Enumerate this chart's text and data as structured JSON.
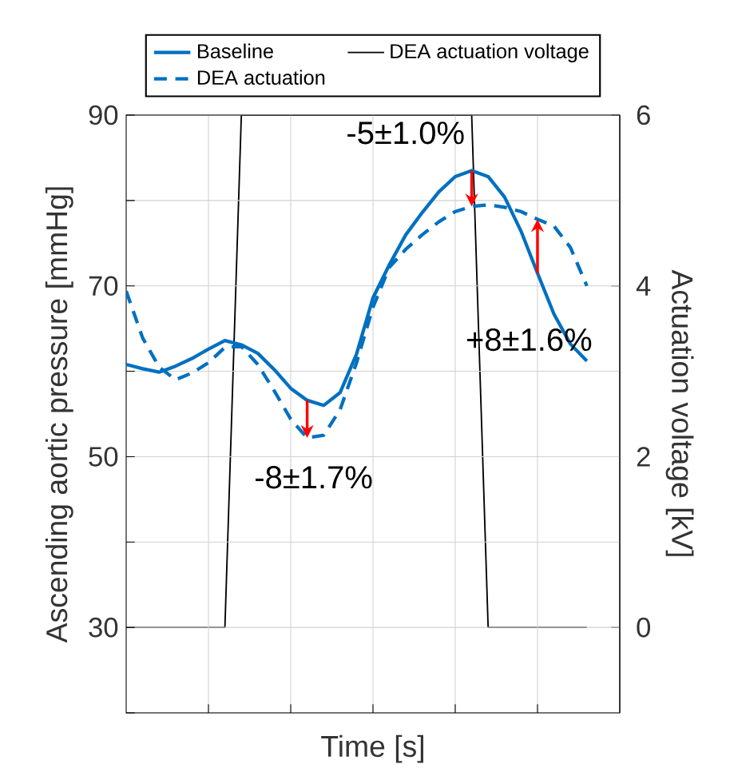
{
  "chart_data": {
    "type": "line",
    "xlabel": "Time [s]",
    "ylabel": "Ascending aortic pressure [mmHg]",
    "y2label": "Actuation voltage [kV]",
    "categories": [
      null,
      null,
      null,
      null,
      null,
      null,
      null,
      null,
      null,
      null,
      null,
      null,
      null,
      null,
      null,
      null,
      null,
      null,
      null,
      null,
      null,
      null,
      null,
      null,
      null,
      null,
      null,
      null,
      null
    ],
    "ylim": [
      20,
      90
    ],
    "yticks": [
      {
        "value": 20,
        "label": null
      },
      30,
      {
        "value": 40,
        "label": null
      },
      50,
      {
        "value": 60,
        "label": null
      },
      70,
      {
        "value": 80,
        "label": null
      },
      90
    ],
    "y2lim": [
      -1,
      6
    ],
    "y2ticks": [
      0,
      2,
      4,
      6
    ],
    "grid": true,
    "legend": "top",
    "marker": "none",
    "series": [
      {
        "name": "Baseline",
        "color": "#0070c0",
        "line_style": "solid",
        "values": [
          60.8,
          60.3,
          59.9,
          60.6,
          61.5,
          62.6,
          63.6,
          63.1,
          62.1,
          60.2,
          58.0,
          56.6,
          56.0,
          57.5,
          62.0,
          68.6,
          72.5,
          76.0,
          78.6,
          81.0,
          82.8,
          83.5,
          82.8,
          80.4,
          76.4,
          71.5,
          66.7,
          63.2,
          61.2
        ]
      },
      {
        "name": "DEA actuation voltage",
        "color": "#000000",
        "line_style": "solid",
        "axis": "y2",
        "values": [
          0,
          0,
          0,
          0,
          0,
          0,
          0,
          6,
          6,
          6,
          6,
          6,
          6,
          6,
          6,
          6,
          6,
          6,
          6,
          6,
          6,
          6,
          0,
          0,
          0,
          0,
          0,
          0,
          0
        ]
      },
      {
        "name": "DEA actuation",
        "color": "#0070c0",
        "line_style": "dashed",
        "values": [
          69.4,
          63.9,
          60.5,
          59.0,
          59.8,
          61.0,
          62.8,
          62.9,
          60.8,
          57.7,
          54.4,
          52.2,
          52.5,
          55.5,
          61.0,
          67.5,
          72.2,
          74.3,
          76.0,
          77.5,
          78.7,
          79.3,
          79.5,
          79.2,
          78.7,
          77.8,
          77.0,
          74.5,
          70.0
        ]
      }
    ],
    "annotations": [
      "-5±1.0%",
      "-8±1.7%",
      "+8±1.6%"
    ]
  }
}
